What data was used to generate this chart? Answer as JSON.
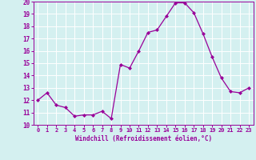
{
  "x": [
    0,
    1,
    2,
    3,
    4,
    5,
    6,
    7,
    8,
    9,
    10,
    11,
    12,
    13,
    14,
    15,
    16,
    17,
    18,
    19,
    20,
    21,
    22,
    23
  ],
  "y": [
    12.0,
    12.6,
    11.6,
    11.4,
    10.7,
    10.8,
    10.8,
    11.1,
    10.5,
    14.9,
    14.6,
    16.0,
    17.5,
    17.7,
    18.8,
    19.9,
    19.9,
    19.1,
    17.4,
    15.5,
    13.8,
    12.7,
    12.6,
    13.0
  ],
  "line_color": "#990099",
  "marker_color": "#990099",
  "bg_color": "#d4f0f0",
  "grid_color": "#ffffff",
  "xlabel": "Windchill (Refroidissement éolien,°C)",
  "xlabel_color": "#990099",
  "tick_color": "#990099",
  "ylim": [
    10,
    20
  ],
  "xlim_min": -0.5,
  "xlim_max": 23.5,
  "yticks": [
    10,
    11,
    12,
    13,
    14,
    15,
    16,
    17,
    18,
    19,
    20
  ],
  "xticks": [
    0,
    1,
    2,
    3,
    4,
    5,
    6,
    7,
    8,
    9,
    10,
    11,
    12,
    13,
    14,
    15,
    16,
    17,
    18,
    19,
    20,
    21,
    22,
    23
  ],
  "figsize": [
    3.2,
    2.0
  ],
  "dpi": 100
}
